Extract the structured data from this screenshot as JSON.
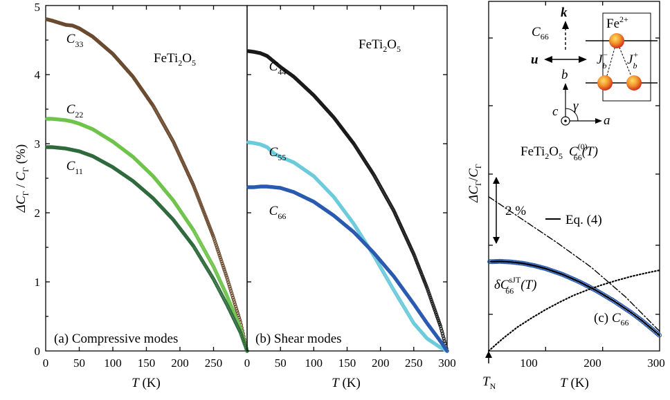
{
  "chart_data": [
    {
      "panel": "a",
      "type": "scatter",
      "material": "FeTi2O5",
      "annotation": "(a) Compressive modes",
      "ylabel": "ΔCΓ/CΓ (%)",
      "xlabel": "T (K)",
      "xlim": [
        0,
        300
      ],
      "ylim": [
        0,
        5
      ],
      "xticks": [
        "0",
        "50",
        "100",
        "150",
        "200",
        "250"
      ],
      "yticks": [
        "0",
        "1",
        "2",
        "3",
        "4",
        "5"
      ],
      "series": [
        {
          "name": "C33",
          "color": "#6b4a2f",
          "x": [
            2,
            10,
            20,
            30,
            40,
            50,
            70,
            100,
            130,
            160,
            190,
            220,
            250,
            270,
            290,
            300
          ],
          "y": [
            4.8,
            4.78,
            4.75,
            4.72,
            4.71,
            4.67,
            4.55,
            4.3,
            3.97,
            3.55,
            3.03,
            2.4,
            1.65,
            1.06,
            0.42,
            0.0
          ]
        },
        {
          "name": "C22",
          "color": "#6ec34a",
          "x": [
            2,
            10,
            20,
            30,
            40,
            50,
            70,
            100,
            130,
            160,
            190,
            220,
            250,
            270,
            290,
            300
          ],
          "y": [
            3.36,
            3.36,
            3.35,
            3.34,
            3.32,
            3.29,
            3.21,
            3.03,
            2.81,
            2.53,
            2.18,
            1.75,
            1.22,
            0.8,
            0.33,
            0.0
          ]
        },
        {
          "name": "C11",
          "color": "#2f6a3c",
          "x": [
            2,
            10,
            20,
            30,
            40,
            50,
            70,
            100,
            130,
            160,
            190,
            220,
            250,
            270,
            290,
            300
          ],
          "y": [
            2.95,
            2.95,
            2.94,
            2.93,
            2.91,
            2.89,
            2.82,
            2.66,
            2.46,
            2.21,
            1.9,
            1.52,
            1.04,
            0.67,
            0.27,
            0.0
          ]
        }
      ],
      "labels": [
        {
          "series": "C",
          "sub": "33",
          "x": 10,
          "y": 4.52
        },
        {
          "series": "C",
          "sub": "22",
          "x": 10,
          "y": 3.5
        },
        {
          "series": "C",
          "sub": "11",
          "x": 10,
          "y": 2.68
        }
      ]
    },
    {
      "panel": "b",
      "type": "scatter",
      "material": "FeTi2O5",
      "annotation": "(b) Shear modes",
      "xlabel": "T (K)",
      "xlim": [
        0,
        300
      ],
      "ylim": [
        0,
        5
      ],
      "xticks": [
        "0",
        "50",
        "100",
        "150",
        "200",
        "250",
        "300"
      ],
      "series": [
        {
          "name": "C44",
          "color": "#1a1a1a",
          "x": [
            2,
            10,
            20,
            30,
            40,
            50,
            70,
            100,
            130,
            160,
            190,
            220,
            250,
            270,
            290,
            300
          ],
          "y": [
            4.34,
            4.33,
            4.31,
            4.27,
            4.19,
            4.11,
            3.97,
            3.7,
            3.38,
            3.0,
            2.55,
            2.03,
            1.4,
            0.91,
            0.36,
            0.0
          ]
        },
        {
          "name": "C55",
          "color": "#6ccbdb",
          "x": [
            2,
            10,
            20,
            30,
            40,
            50,
            70,
            100,
            130,
            160,
            190,
            220,
            250,
            270,
            290,
            300
          ],
          "y": [
            3.02,
            3.01,
            2.99,
            2.95,
            2.86,
            2.81,
            2.73,
            2.53,
            2.23,
            1.84,
            1.38,
            0.88,
            0.4,
            0.18,
            0.05,
            0.0
          ]
        },
        {
          "name": "C66",
          "color": "#2a5ab0",
          "x": [
            2,
            10,
            20,
            30,
            40,
            50,
            70,
            100,
            130,
            160,
            190,
            220,
            250,
            270,
            290,
            300
          ],
          "y": [
            2.37,
            2.37,
            2.38,
            2.38,
            2.37,
            2.36,
            2.3,
            2.16,
            1.96,
            1.72,
            1.42,
            1.08,
            0.68,
            0.4,
            0.14,
            0.0
          ]
        }
      ],
      "labels": [
        {
          "series": "C",
          "sub": "44",
          "x": 10,
          "y": 4.12
        },
        {
          "series": "C",
          "sub": "55",
          "x": 10,
          "y": 2.88
        },
        {
          "series": "C",
          "sub": "66",
          "x": 10,
          "y": 2.03
        }
      ]
    },
    {
      "panel": "c",
      "type": "scatter",
      "material": "FeTi2O5",
      "annotation": "(c) C66",
      "ylabel": "ΔCΓ/CΓ",
      "xlabel": "T (K)",
      "xlim": [
        0,
        300
      ],
      "xticks": [
        "100",
        "200",
        "300"
      ],
      "tn_label": "TN",
      "scale_bar": "2 %",
      "scale_bar_percent": 2,
      "series": [
        {
          "name": "C66 data",
          "color": "#2a5ab0",
          "x": [
            2,
            20,
            40,
            60,
            80,
            100,
            130,
            160,
            190,
            220,
            250,
            270,
            290,
            300
          ],
          "y": [
            2.72,
            2.73,
            2.71,
            2.67,
            2.6,
            2.51,
            2.33,
            2.1,
            1.83,
            1.52,
            1.17,
            0.91,
            0.62,
            0.47
          ]
        },
        {
          "name": "Eq. (4)",
          "color": "#000000",
          "x": [
            2,
            20,
            40,
            60,
            80,
            100,
            130,
            160,
            190,
            220,
            250,
            270,
            290,
            300
          ],
          "y": [
            2.72,
            2.73,
            2.71,
            2.67,
            2.6,
            2.51,
            2.33,
            2.1,
            1.83,
            1.52,
            1.17,
            0.91,
            0.62,
            0.47
          ]
        },
        {
          "name": "C66(0)(T)",
          "style": "dash-dot",
          "x": [
            0,
            60,
            120,
            180,
            240,
            300
          ],
          "y": [
            4.7,
            4.0,
            3.3,
            2.55,
            1.65,
            0.6
          ]
        },
        {
          "name": "δC66sJT(T)",
          "style": "dotted",
          "x": [
            0,
            25,
            50,
            75,
            100,
            125,
            150,
            175,
            200,
            225,
            250,
            275,
            300
          ],
          "y": [
            0.0,
            0.38,
            0.72,
            1.0,
            1.26,
            1.49,
            1.7,
            1.87,
            2.02,
            2.15,
            2.27,
            2.37,
            2.46
          ]
        }
      ],
      "text": {
        "material": "FeTi₂O₅",
        "eq_label": "Eq. (4)",
        "c66_0": "C",
        "c66_0_sup": "(0)",
        "c66_0_sub": "66",
        "c66_0_tail": "(T)",
        "sjt_delta": "δC",
        "sjt_sup": "sJT",
        "sjt_sub": "66",
        "sjt_tail": "(T)"
      },
      "inset": {
        "label_c66": "C",
        "label_c66_sub": "66",
        "k": "k",
        "u": "u",
        "fe": "Fe",
        "fe_sup": "2+",
        "j": "J",
        "j_sub": "b",
        "j_minus": "−",
        "j_plus": "+",
        "axis_a": "a",
        "axis_b": "b",
        "axis_c": "c",
        "gamma": "γ"
      }
    }
  ]
}
